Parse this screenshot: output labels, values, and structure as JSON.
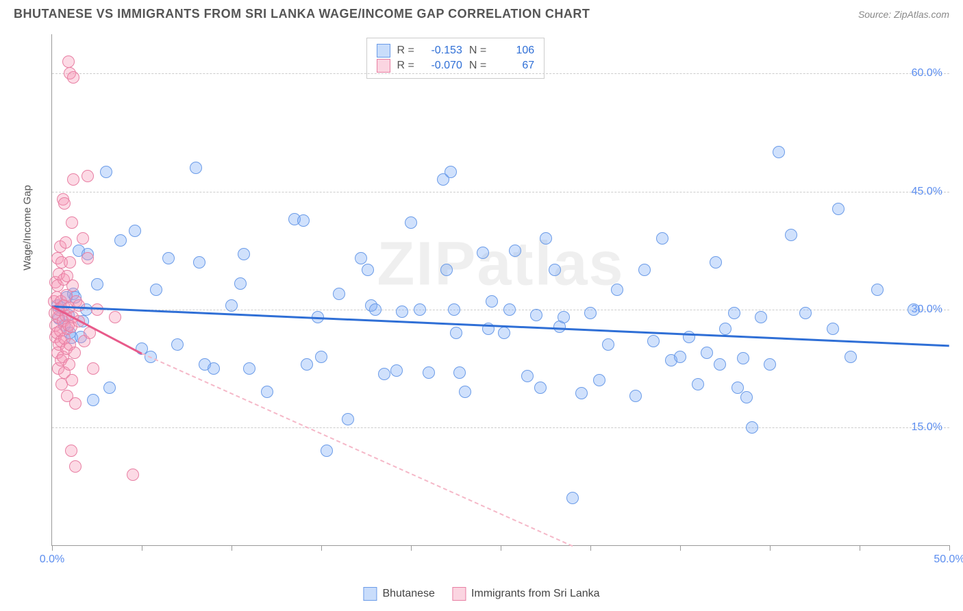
{
  "title": "BHUTANESE VS IMMIGRANTS FROM SRI LANKA WAGE/INCOME GAP CORRELATION CHART",
  "source": "Source: ZipAtlas.com",
  "watermark": "ZIPatlas",
  "chart": {
    "type": "scatter",
    "y_axis_label": "Wage/Income Gap",
    "xlim": [
      0,
      50
    ],
    "ylim": [
      0,
      65
    ],
    "x_ticks": [
      0,
      5,
      10,
      15,
      20,
      25,
      30,
      35,
      40,
      45,
      50
    ],
    "x_tick_labels": {
      "0": "0.0%",
      "50": "50.0%"
    },
    "y_gridlines": [
      15,
      30,
      45,
      60
    ],
    "y_tick_labels": {
      "15": "15.0%",
      "30": "30.0%",
      "45": "45.0%",
      "60": "60.0%"
    },
    "background_color": "#ffffff",
    "grid_color": "#cccccc",
    "marker_radius": 9,
    "series": [
      {
        "name": "Bhutanese",
        "color_fill": "rgba(120,170,245,0.35)",
        "color_stroke": "#6a9be8",
        "trend_color": "#2f6fd6",
        "r_value": "-0.153",
        "n_value": "106",
        "trend_start": [
          0,
          30.5
        ],
        "trend_end": [
          50,
          25.5
        ],
        "points": [
          [
            0.3,
            30.5
          ],
          [
            0.4,
            28.8
          ],
          [
            0.5,
            30.2
          ],
          [
            0.7,
            28.0
          ],
          [
            0.8,
            31.5
          ],
          [
            0.9,
            29.3
          ],
          [
            1.0,
            27.0
          ],
          [
            1.1,
            26.4
          ],
          [
            1.2,
            32.0
          ],
          [
            1.3,
            31.5
          ],
          [
            1.5,
            37.5
          ],
          [
            1.6,
            26.5
          ],
          [
            1.7,
            28.5
          ],
          [
            1.9,
            30.0
          ],
          [
            2.0,
            37.0
          ],
          [
            2.3,
            18.5
          ],
          [
            2.5,
            33.2
          ],
          [
            3.0,
            47.5
          ],
          [
            3.2,
            20.0
          ],
          [
            3.8,
            38.8
          ],
          [
            4.6,
            40.0
          ],
          [
            5.0,
            25.0
          ],
          [
            5.5,
            24.0
          ],
          [
            6.5,
            36.5
          ],
          [
            7.0,
            25.5
          ],
          [
            8.0,
            48.0
          ],
          [
            8.5,
            23.0
          ],
          [
            9.0,
            22.5
          ],
          [
            10.5,
            33.3
          ],
          [
            10.7,
            37.0
          ],
          [
            11.0,
            22.5
          ],
          [
            12.0,
            19.5
          ],
          [
            13.5,
            41.5
          ],
          [
            14.0,
            41.3
          ],
          [
            14.2,
            23.0
          ],
          [
            14.8,
            29.0
          ],
          [
            15.0,
            24.0
          ],
          [
            15.3,
            12.0
          ],
          [
            16.0,
            32.0
          ],
          [
            16.5,
            16.0
          ],
          [
            17.2,
            36.5
          ],
          [
            17.6,
            35.0
          ],
          [
            17.8,
            30.5
          ],
          [
            18.0,
            30.0
          ],
          [
            18.5,
            21.8
          ],
          [
            19.2,
            22.2
          ],
          [
            19.5,
            29.7
          ],
          [
            20.0,
            41.0
          ],
          [
            20.5,
            30.0
          ],
          [
            21.0,
            22.0
          ],
          [
            21.8,
            46.5
          ],
          [
            22.0,
            35.0
          ],
          [
            22.2,
            47.5
          ],
          [
            22.4,
            30.0
          ],
          [
            22.5,
            27.0
          ],
          [
            22.7,
            22.0
          ],
          [
            23.0,
            19.5
          ],
          [
            24.0,
            37.2
          ],
          [
            24.3,
            27.5
          ],
          [
            24.5,
            31.0
          ],
          [
            25.2,
            27.0
          ],
          [
            25.5,
            30.0
          ],
          [
            25.8,
            37.5
          ],
          [
            26.5,
            21.5
          ],
          [
            27.0,
            29.3
          ],
          [
            27.2,
            20.0
          ],
          [
            27.5,
            39.0
          ],
          [
            28.0,
            35.0
          ],
          [
            28.3,
            27.8
          ],
          [
            28.5,
            29.0
          ],
          [
            29.0,
            6.0
          ],
          [
            29.5,
            19.3
          ],
          [
            30.0,
            29.5
          ],
          [
            31.0,
            25.5
          ],
          [
            31.5,
            32.5
          ],
          [
            32.5,
            19.0
          ],
          [
            33.0,
            35.0
          ],
          [
            33.5,
            26.0
          ],
          [
            34.5,
            23.5
          ],
          [
            35.0,
            24.0
          ],
          [
            35.5,
            26.5
          ],
          [
            36.0,
            20.5
          ],
          [
            36.5,
            24.5
          ],
          [
            37.0,
            36.0
          ],
          [
            37.2,
            23.0
          ],
          [
            37.5,
            27.5
          ],
          [
            38.0,
            29.5
          ],
          [
            38.2,
            20.0
          ],
          [
            38.5,
            23.8
          ],
          [
            38.7,
            18.8
          ],
          [
            39.0,
            15.0
          ],
          [
            39.5,
            29.0
          ],
          [
            40.0,
            23.0
          ],
          [
            40.5,
            50.0
          ],
          [
            41.2,
            39.5
          ],
          [
            42.0,
            29.5
          ],
          [
            43.5,
            27.5
          ],
          [
            43.8,
            42.8
          ],
          [
            44.5,
            24.0
          ],
          [
            46.0,
            32.5
          ],
          [
            48.0,
            30.0
          ],
          [
            34.0,
            39.0
          ],
          [
            30.5,
            21.0
          ],
          [
            10.0,
            30.5
          ],
          [
            5.8,
            32.5
          ],
          [
            8.2,
            36.0
          ]
        ]
      },
      {
        "name": "Immigrants from Sri Lanka",
        "color_fill": "rgba(245,150,180,0.35)",
        "color_stroke": "#e87fa3",
        "trend_color": "#e85a8a",
        "r_value": "-0.070",
        "n_value": "67",
        "trend_start": [
          0,
          30.5
        ],
        "trend_end": [
          5,
          24.5
        ],
        "trend_dashed_end": [
          29,
          0
        ],
        "points": [
          [
            0.1,
            31.0
          ],
          [
            0.15,
            29.5
          ],
          [
            0.2,
            28.0
          ],
          [
            0.2,
            26.5
          ],
          [
            0.2,
            33.5
          ],
          [
            0.25,
            27.0
          ],
          [
            0.25,
            31.5
          ],
          [
            0.3,
            33.0
          ],
          [
            0.3,
            24.5
          ],
          [
            0.3,
            36.5
          ],
          [
            0.35,
            22.5
          ],
          [
            0.35,
            29.0
          ],
          [
            0.4,
            25.5
          ],
          [
            0.4,
            34.5
          ],
          [
            0.4,
            30.0
          ],
          [
            0.45,
            38.0
          ],
          [
            0.45,
            27.3
          ],
          [
            0.5,
            23.5
          ],
          [
            0.5,
            31.0
          ],
          [
            0.5,
            26.0
          ],
          [
            0.55,
            20.5
          ],
          [
            0.55,
            36.0
          ],
          [
            0.6,
            28.5
          ],
          [
            0.6,
            24.0
          ],
          [
            0.6,
            44.0
          ],
          [
            0.65,
            30.5
          ],
          [
            0.65,
            33.8
          ],
          [
            0.7,
            26.3
          ],
          [
            0.7,
            22.0
          ],
          [
            0.7,
            43.5
          ],
          [
            0.75,
            38.5
          ],
          [
            0.75,
            29.2
          ],
          [
            0.8,
            25.0
          ],
          [
            0.8,
            31.8
          ],
          [
            0.85,
            27.5
          ],
          [
            0.85,
            19.0
          ],
          [
            0.85,
            34.2
          ],
          [
            0.9,
            61.5
          ],
          [
            0.9,
            28.0
          ],
          [
            0.95,
            30.2
          ],
          [
            0.95,
            23.0
          ],
          [
            1.0,
            36.0
          ],
          [
            1.0,
            25.5
          ],
          [
            1.0,
            60.0
          ],
          [
            1.05,
            12.0
          ],
          [
            1.05,
            27.8
          ],
          [
            1.1,
            41.0
          ],
          [
            1.1,
            21.0
          ],
          [
            1.15,
            29.0
          ],
          [
            1.15,
            33.0
          ],
          [
            1.2,
            59.5
          ],
          [
            1.2,
            46.5
          ],
          [
            1.25,
            24.5
          ],
          [
            1.3,
            10.0
          ],
          [
            1.3,
            18.0
          ],
          [
            1.35,
            31.0
          ],
          [
            1.5,
            30.5
          ],
          [
            1.5,
            28.5
          ],
          [
            1.7,
            39.0
          ],
          [
            1.8,
            26.0
          ],
          [
            2.0,
            47.0
          ],
          [
            2.0,
            36.5
          ],
          [
            2.1,
            27.0
          ],
          [
            2.3,
            22.5
          ],
          [
            2.5,
            30.0
          ],
          [
            3.5,
            29.0
          ],
          [
            4.5,
            9.0
          ]
        ]
      }
    ],
    "stats_labels": {
      "r": "R =",
      "n": "N ="
    }
  },
  "legend": {
    "series1": "Bhutanese",
    "series2": "Immigrants from Sri Lanka"
  }
}
